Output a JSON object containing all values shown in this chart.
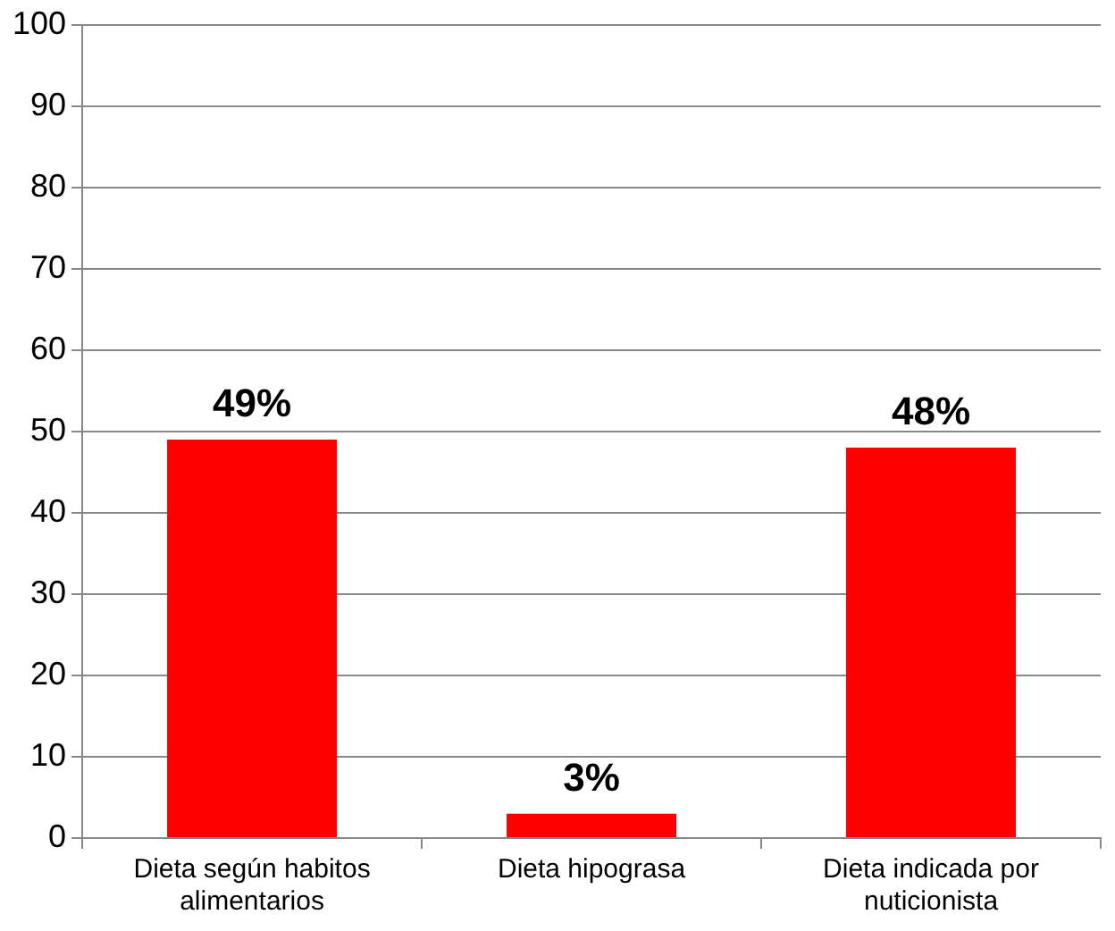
{
  "chart_data": {
    "type": "bar",
    "categories": [
      "Dieta según habitos alimentarios",
      "Dieta hipograsa",
      "Dieta indicada por nuticionista"
    ],
    "values": [
      49,
      3,
      48
    ],
    "color": "#ff0000",
    "value_labels": [
      "49%",
      "3%",
      "48%"
    ],
    "ylim": [
      0,
      100
    ],
    "yticks": [
      0,
      10,
      20,
      30,
      40,
      50,
      60,
      70,
      80,
      90,
      100
    ],
    "grid": "y",
    "legend": false
  }
}
